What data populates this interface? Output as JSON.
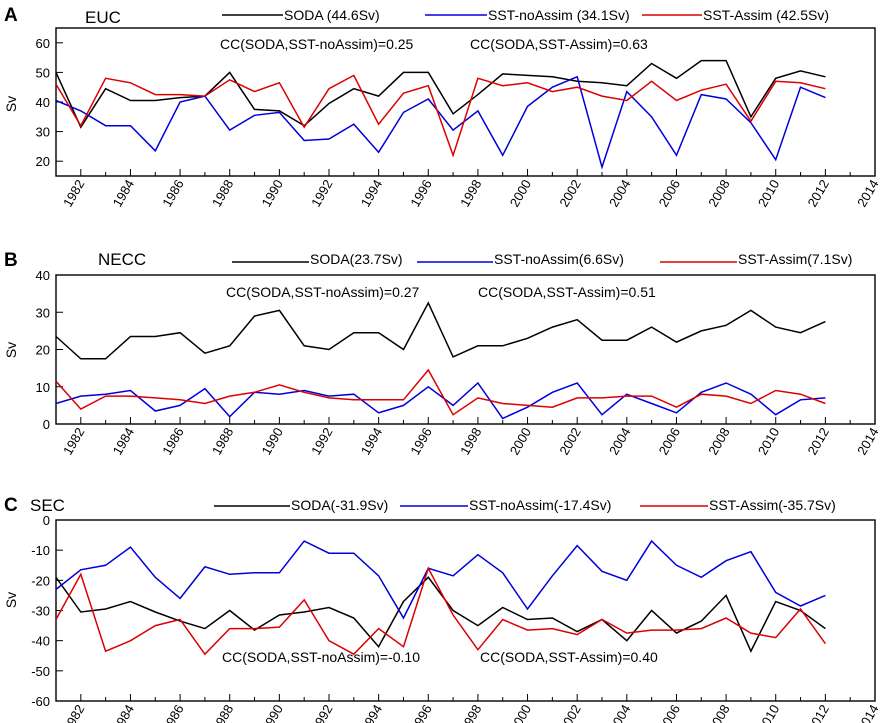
{
  "figure": {
    "panels_count": 3
  },
  "chart_data": [
    {
      "type": "line",
      "panel_letter": "A",
      "title": "EUC",
      "ylabel": "Sv",
      "xlabel": "",
      "xlim": [
        1981,
        2014
      ],
      "ylim": [
        15,
        65
      ],
      "x_ticks": [
        1982,
        1984,
        1986,
        1988,
        1990,
        1992,
        1994,
        1996,
        1998,
        2000,
        2002,
        2004,
        2006,
        2008,
        2010,
        2012,
        2014
      ],
      "y_ticks": [
        20,
        30,
        40,
        50,
        60
      ],
      "x": [
        1981,
        1982,
        1983,
        1984,
        1985,
        1986,
        1987,
        1988,
        1989,
        1990,
        1991,
        1992,
        1993,
        1994,
        1995,
        1996,
        1997,
        1998,
        1999,
        2000,
        2001,
        2002,
        2003,
        2004,
        2005,
        2006,
        2007,
        2008,
        2009,
        2010,
        2011,
        2012
      ],
      "series": [
        {
          "name": "SODA",
          "legend": "SODA (44.6Sv)",
          "color": "#000000",
          "values": [
            50,
            31.5,
            44.5,
            40.5,
            40.5,
            41.5,
            42,
            50,
            37.5,
            37,
            32,
            39.5,
            44.5,
            42,
            50,
            50,
            36,
            42.5,
            49.5,
            49,
            48.5,
            47,
            46.5,
            45.5,
            53,
            48,
            54,
            54,
            35,
            48,
            50.5,
            48.5
          ]
        },
        {
          "name": "SST-noAssim",
          "legend": "SST-noAssim (34.1Sv)",
          "color": "#0000dd",
          "values": [
            40.5,
            37,
            32,
            32,
            23.5,
            40,
            42,
            30.5,
            35.5,
            36.5,
            27,
            27.5,
            32.5,
            23,
            36.5,
            41,
            30.5,
            37,
            22,
            38.5,
            45,
            48.5,
            18,
            43.5,
            35,
            22,
            42.5,
            41,
            33,
            20.5,
            45,
            41.5
          ]
        },
        {
          "name": "SST-Assim",
          "legend": "SST-Assim (42.5Sv)",
          "color": "#dd0000",
          "values": [
            46,
            32,
            48,
            46.5,
            42.5,
            42.5,
            42,
            47.5,
            43.5,
            46.5,
            31.5,
            44.5,
            49,
            32.5,
            43,
            45.5,
            22,
            48,
            45.5,
            46.5,
            43.5,
            45,
            42,
            40.5,
            47,
            40.5,
            44,
            46,
            33.5,
            47,
            46.5,
            44.5
          ]
        }
      ],
      "annotations": [
        "CC(SODA,SST-noAssim)=0.25",
        "CC(SODA,SST-Assim)=0.63"
      ]
    },
    {
      "type": "line",
      "panel_letter": "B",
      "title": "NECC",
      "ylabel": "Sv",
      "xlabel": "",
      "xlim": [
        1981,
        2014
      ],
      "ylim": [
        0,
        40
      ],
      "x_ticks": [
        1982,
        1984,
        1986,
        1988,
        1990,
        1992,
        1994,
        1996,
        1998,
        2000,
        2002,
        2004,
        2006,
        2008,
        2010,
        2012,
        2014
      ],
      "y_ticks": [
        0,
        10,
        20,
        30,
        40
      ],
      "x": [
        1981,
        1982,
        1983,
        1984,
        1985,
        1986,
        1987,
        1988,
        1989,
        1990,
        1991,
        1992,
        1993,
        1994,
        1995,
        1996,
        1997,
        1998,
        1999,
        2000,
        2001,
        2002,
        2003,
        2004,
        2005,
        2006,
        2007,
        2008,
        2009,
        2010,
        2011,
        2012
      ],
      "series": [
        {
          "name": "SODA",
          "legend": "SODA(23.7Sv)",
          "color": "#000000",
          "values": [
            23.5,
            17.5,
            17.5,
            23.5,
            23.5,
            24.5,
            19,
            21,
            29,
            30.5,
            21,
            20,
            24.5,
            24.5,
            20,
            32.5,
            18,
            21,
            21,
            23,
            26,
            28,
            22.5,
            22.5,
            26,
            22,
            25,
            26.5,
            30.5,
            26,
            24.5,
            27.5
          ]
        },
        {
          "name": "SST-noAssim",
          "legend": "SST-noAssim(6.6Sv)",
          "color": "#0000dd",
          "values": [
            5.5,
            7.5,
            8,
            9,
            3.5,
            5,
            9.5,
            2,
            8.5,
            8,
            9,
            7.5,
            8,
            3,
            5,
            10,
            5,
            11,
            1.5,
            4.5,
            8.5,
            11,
            2.5,
            8,
            5.5,
            3,
            8.5,
            11,
            8,
            2.5,
            6.5,
            7
          ]
        },
        {
          "name": "SST-Assim",
          "legend": "SST-Assim(7.1Sv)",
          "color": "#dd0000",
          "values": [
            11.5,
            4,
            7.5,
            7.5,
            7,
            6.5,
            5.5,
            7.5,
            8.5,
            10.5,
            8.5,
            7,
            6.5,
            6.5,
            6.5,
            14.5,
            2.5,
            7,
            5.5,
            5,
            4.5,
            7,
            7,
            7.5,
            7.5,
            4.5,
            8,
            7.5,
            5.5,
            9,
            8,
            5.5
          ]
        }
      ],
      "annotations": [
        "CC(SODA,SST-noAssim)=0.27",
        "CC(SODA,SST-Assim)=0.51"
      ]
    },
    {
      "type": "line",
      "panel_letter": "C",
      "title": "SEC",
      "ylabel": "Sv",
      "xlabel": "",
      "xlim": [
        1981,
        2014
      ],
      "ylim": [
        -60,
        0
      ],
      "x_ticks": [
        1982,
        1984,
        1986,
        1988,
        1990,
        1992,
        1994,
        1996,
        1998,
        2000,
        2002,
        2004,
        2006,
        2008,
        2010,
        2012,
        2014
      ],
      "y_ticks": [
        -60,
        -50,
        -40,
        -30,
        -20,
        -10,
        0
      ],
      "x": [
        1981,
        1982,
        1983,
        1984,
        1985,
        1986,
        1987,
        1988,
        1989,
        1990,
        1991,
        1992,
        1993,
        1994,
        1995,
        1996,
        1997,
        1998,
        1999,
        2000,
        2001,
        2002,
        2003,
        2004,
        2005,
        2006,
        2007,
        2008,
        2009,
        2010,
        2011,
        2012
      ],
      "series": [
        {
          "name": "SODA",
          "legend": "SODA(-31.9Sv)",
          "color": "#000000",
          "values": [
            -19,
            -30.5,
            -29.5,
            -27,
            -30.5,
            -33.5,
            -36,
            -30,
            -36.5,
            -31.5,
            -30.5,
            -29,
            -32.5,
            -42,
            -27,
            -19,
            -30,
            -35,
            -29,
            -33,
            -32.5,
            -37,
            -33,
            -40,
            -30,
            -37.5,
            -33.5,
            -25,
            -43.5,
            -27,
            -30,
            -36
          ]
        },
        {
          "name": "SST-noAssim",
          "legend": "SST-noAssim(-17.4Sv)",
          "color": "#0000dd",
          "values": [
            -23,
            -16.5,
            -15,
            -9,
            -19,
            -26,
            -15.5,
            -18,
            -17.5,
            -17.5,
            -7,
            -11,
            -11,
            -18.5,
            -32.5,
            -16,
            -18.5,
            -11.5,
            -17.5,
            -29.5,
            -18.5,
            -8.5,
            -17,
            -20,
            -7,
            -15,
            -19,
            -13.5,
            -10.5,
            -24,
            -28.5,
            -25
          ]
        },
        {
          "name": "SST-Assim",
          "legend": "SST-Assim(-35.7Sv)",
          "color": "#dd0000",
          "values": [
            -33,
            -18,
            -43.5,
            -40,
            -35,
            -33,
            -44.5,
            -36,
            -36,
            -35.5,
            -26.5,
            -40,
            -44.5,
            -36,
            -42,
            -16,
            -31.5,
            -43,
            -33,
            -36.5,
            -36,
            -38,
            -33,
            -37.5,
            -36.5,
            -36.5,
            -36,
            -32.5,
            -37.5,
            -39,
            -29.5,
            -41
          ]
        }
      ],
      "annotations": [
        "CC(SODA,SST-noAssim)=-0.10",
        "CC(SODA,SST-Assim)=0.40"
      ]
    }
  ]
}
